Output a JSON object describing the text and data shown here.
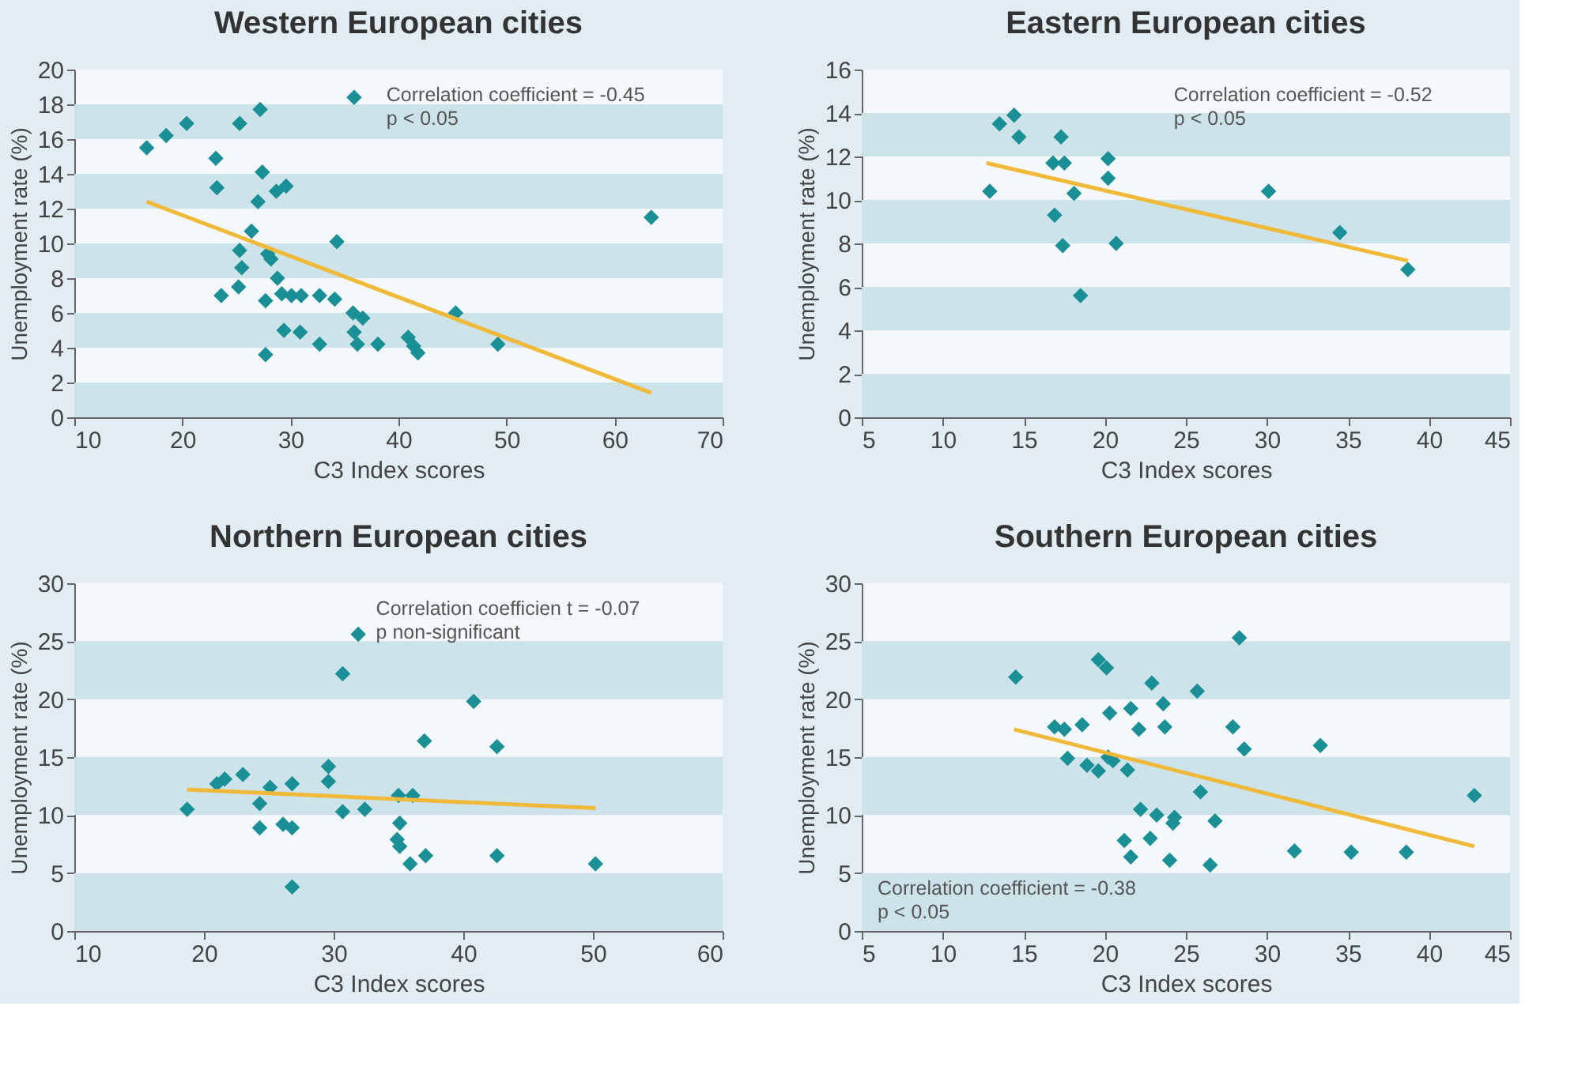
{
  "chart_data": [
    {
      "type": "scatter",
      "title": "Western European cities",
      "xlabel": "C3 Index scores",
      "ylabel": "Unemployment rate (%)",
      "xlim": [
        10,
        70
      ],
      "xticks": [
        10,
        20,
        30,
        40,
        50,
        60,
        70
      ],
      "ylim": [
        0,
        20
      ],
      "yticks": [
        0,
        2,
        4,
        6,
        8,
        10,
        12,
        14,
        16,
        18,
        20
      ],
      "grid": false,
      "annotations": [
        "Correlation coefficient = -0.45",
        "p < 0.05"
      ],
      "bands": [
        {
          "axis": "y",
          "from": 0,
          "to": 2,
          "color": "#cde3ea"
        },
        {
          "axis": "y",
          "from": 4,
          "to": 6,
          "color": "#cde3ea"
        },
        {
          "axis": "y",
          "from": 8,
          "to": 10,
          "color": "#cde3ea"
        },
        {
          "axis": "y",
          "from": 12,
          "to": 14,
          "color": "#cde3ea"
        },
        {
          "axis": "y",
          "from": 16,
          "to": 18,
          "color": "#cde3ea"
        }
      ],
      "series": [
        {
          "marker": "diamond",
          "color": "#1a8f96",
          "x": [
            16.7,
            18.5,
            20.4,
            25.3,
            27.2,
            35.9,
            23.1,
            23.2,
            27.4,
            28.7,
            29.6,
            27.0,
            26.4,
            25.3,
            27.9,
            25.5,
            28.2,
            34.3,
            28.8,
            23.6,
            25.2,
            27.7,
            29.2,
            30.1,
            31.0,
            32.7,
            34.1,
            35.8,
            36.7,
            29.4,
            30.9,
            32.7,
            35.9,
            36.2,
            38.1,
            40.9,
            41.4,
            41.8,
            27.7,
            45.3,
            49.2,
            63.4
          ],
          "values": [
            15.5,
            16.2,
            16.9,
            16.9,
            17.7,
            18.4,
            14.9,
            13.2,
            14.1,
            13.0,
            13.3,
            12.4,
            10.7,
            9.6,
            9.4,
            8.6,
            9.1,
            10.1,
            8.0,
            7.0,
            7.5,
            6.7,
            7.1,
            7.0,
            7.0,
            7.0,
            6.8,
            6.0,
            5.7,
            5.0,
            4.9,
            4.2,
            4.9,
            4.2,
            4.2,
            4.6,
            4.1,
            3.7,
            3.6,
            6.0,
            4.2,
            11.5
          ]
        },
        {
          "type": "line",
          "color": "#f0b93a",
          "x": [
            16.7,
            63.4
          ],
          "values": [
            12.4,
            1.4
          ]
        }
      ]
    },
    {
      "type": "scatter",
      "title": "Eastern European cities",
      "xlabel": "C3 Index scores",
      "ylabel": "Unemployment rate (%)",
      "xlim": [
        5,
        45
      ],
      "xticks": [
        5,
        10,
        15,
        20,
        25,
        30,
        35,
        40,
        45
      ],
      "ylim": [
        0,
        16
      ],
      "yticks": [
        0,
        2,
        4,
        6,
        8,
        10,
        12,
        14,
        16
      ],
      "grid": false,
      "annotations": [
        "Correlation coefficient = -0.52",
        "p < 0.05"
      ],
      "bands": [
        {
          "axis": "y",
          "from": 0,
          "to": 2,
          "color": "#cde3ea"
        },
        {
          "axis": "y",
          "from": 4,
          "to": 6,
          "color": "#cde3ea"
        },
        {
          "axis": "y",
          "from": 8,
          "to": 10,
          "color": "#cde3ea"
        },
        {
          "axis": "y",
          "from": 12,
          "to": 14,
          "color": "#cde3ea"
        }
      ],
      "series": [
        {
          "marker": "diamond",
          "color": "#1a8f96",
          "x": [
            12.9,
            13.5,
            14.4,
            14.7,
            17.3,
            16.8,
            17.5,
            18.1,
            16.9,
            17.4,
            18.5,
            20.2,
            20.2,
            20.7,
            30.1,
            34.5,
            38.7
          ],
          "values": [
            10.4,
            13.5,
            13.9,
            12.9,
            12.9,
            11.7,
            11.7,
            10.3,
            9.3,
            7.9,
            5.6,
            11.9,
            11.0,
            8.0,
            10.4,
            8.5,
            6.8
          ]
        },
        {
          "type": "line",
          "color": "#f0b93a",
          "x": [
            12.7,
            38.7
          ],
          "values": [
            11.7,
            7.2
          ]
        }
      ]
    },
    {
      "type": "scatter",
      "title": "Northern European cities",
      "xlabel": "C3 Index scores",
      "ylabel": "Unemployment rate (%)",
      "xlim": [
        10,
        60
      ],
      "xticks": [
        10,
        20,
        30,
        40,
        50,
        60
      ],
      "ylim": [
        0,
        30
      ],
      "yticks": [
        0,
        5,
        10,
        15,
        20,
        25,
        30
      ],
      "grid": false,
      "annotations": [
        "Correlation coefficien t = -0.07",
        "p non-significant"
      ],
      "bands": [
        {
          "axis": "y",
          "from": 0,
          "to": 5,
          "color": "#cde3ea"
        },
        {
          "axis": "y",
          "from": 10,
          "to": 15,
          "color": "#cde3ea"
        },
        {
          "axis": "y",
          "from": 20,
          "to": 25,
          "color": "#cde3ea"
        }
      ],
      "series": [
        {
          "marker": "diamond",
          "color": "#1a8f96",
          "x": [
            18.7,
            21.0,
            21.6,
            23.0,
            24.3,
            24.3,
            25.1,
            26.1,
            26.8,
            26.8,
            26.8,
            29.6,
            29.6,
            30.7,
            31.9,
            30.7,
            32.4,
            35.0,
            36.1,
            35.1,
            34.9,
            35.1,
            35.9,
            37.1,
            37.0,
            40.8,
            42.6,
            42.6,
            50.2
          ],
          "values": [
            10.5,
            12.7,
            13.1,
            13.5,
            11.0,
            8.9,
            12.4,
            9.2,
            8.9,
            12.7,
            3.8,
            14.2,
            12.9,
            22.2,
            25.6,
            10.3,
            10.5,
            11.7,
            11.7,
            9.3,
            7.9,
            7.3,
            5.8,
            6.5,
            16.4,
            19.8,
            15.9,
            6.5,
            5.8
          ]
        },
        {
          "type": "line",
          "color": "#f0b93a",
          "x": [
            18.7,
            50.2
          ],
          "values": [
            12.2,
            10.6
          ]
        }
      ]
    },
    {
      "type": "scatter",
      "title": "Southern European cities",
      "xlabel": "C3 Index scores",
      "ylabel": "Unemployment rate (%)",
      "xlim": [
        5,
        45
      ],
      "xticks": [
        5,
        10,
        15,
        20,
        25,
        30,
        35,
        40,
        45
      ],
      "ylim": [
        0,
        30
      ],
      "yticks": [
        0,
        5,
        10,
        15,
        20,
        25,
        30
      ],
      "grid": false,
      "annotations": [
        "Correlation coefficient = -0.38",
        "p < 0.05"
      ],
      "bands": [
        {
          "axis": "y",
          "from": 0,
          "to": 5,
          "color": "#cde3ea"
        },
        {
          "axis": "y",
          "from": 10,
          "to": 15,
          "color": "#cde3ea"
        },
        {
          "axis": "y",
          "from": 20,
          "to": 25,
          "color": "#cde3ea"
        }
      ],
      "series": [
        {
          "marker": "diamond",
          "color": "#1a8f96",
          "x": [
            14.5,
            16.9,
            17.5,
            18.6,
            17.7,
            18.9,
            19.6,
            19.6,
            20.1,
            20.3,
            20.2,
            20.5,
            21.6,
            22.1,
            21.4,
            22.2,
            21.2,
            21.6,
            22.8,
            22.9,
            23.6,
            23.7,
            23.2,
            24.3,
            24.2,
            24.0,
            25.7,
            25.9,
            26.5,
            26.8,
            27.9,
            28.3,
            28.6,
            31.7,
            33.3,
            35.2,
            38.6,
            42.8
          ],
          "values": [
            21.9,
            17.6,
            17.4,
            17.8,
            14.9,
            14.3,
            13.8,
            23.4,
            22.7,
            18.8,
            15.0,
            14.7,
            19.2,
            17.4,
            13.9,
            10.5,
            7.8,
            6.4,
            8.0,
            21.4,
            19.6,
            17.6,
            10.0,
            9.8,
            9.3,
            6.1,
            20.7,
            12.0,
            5.7,
            9.5,
            17.6,
            25.3,
            15.7,
            6.9,
            16.0,
            6.8,
            6.8,
            11.7
          ]
        },
        {
          "type": "line",
          "color": "#f0b93a",
          "x": [
            14.4,
            42.8
          ],
          "values": [
            17.4,
            7.3
          ]
        }
      ]
    }
  ]
}
